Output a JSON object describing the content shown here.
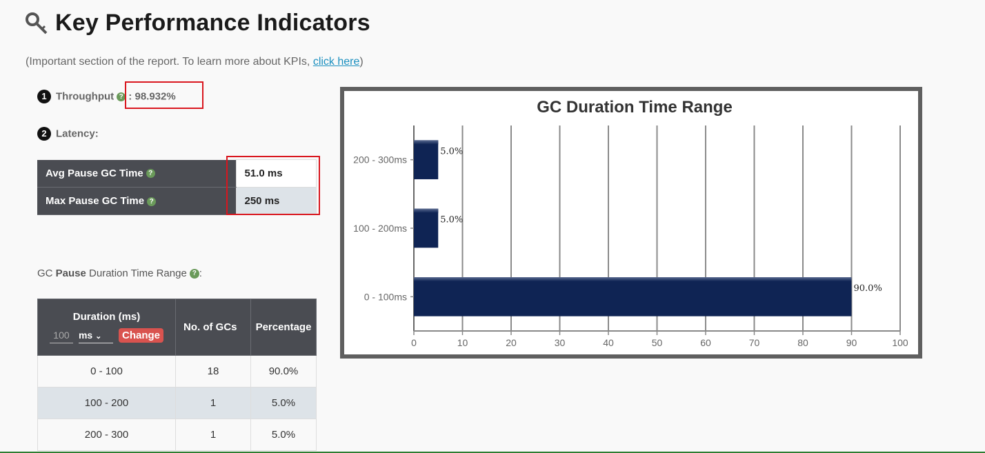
{
  "page": {
    "title": "Key Performance Indicators",
    "intro_prefix": "(Important section of the report. To learn more about KPIs, ",
    "intro_link": "click here",
    "intro_suffix": ")"
  },
  "kpis": {
    "throughput": {
      "badge": "1",
      "label": "Throughput",
      "separator": " : ",
      "value": "98.932%"
    },
    "latency": {
      "badge": "2",
      "label": "Latency:",
      "rows": [
        {
          "label": "Avg Pause GC Time",
          "value": "51.0 ms"
        },
        {
          "label": "Max Pause GC Time",
          "value": "250 ms"
        }
      ]
    }
  },
  "pause_range": {
    "title_prefix": "GC ",
    "title_bold": "Pause",
    "title_suffix": " Duration Time Range",
    "title_colon": ":",
    "headers": {
      "duration": "Duration (ms)",
      "count": "No. of GCs",
      "percentage": "Percentage"
    },
    "controls": {
      "input_placeholder": "100",
      "unit": "ms",
      "change": "Change"
    },
    "rows": [
      {
        "duration": "0 - 100",
        "count": "18",
        "percentage": "90.0%"
      },
      {
        "duration": "100 - 200",
        "count": "1",
        "percentage": "5.0%"
      },
      {
        "duration": "200 - 300",
        "count": "1",
        "percentage": "5.0%"
      }
    ]
  },
  "icons": {
    "title": "key-icon",
    "help": "question-circle-icon",
    "select": "chevron-down-icon"
  },
  "colors": {
    "bar": "#0f2454",
    "header": "#4a4c52",
    "highlight": "#d9161e",
    "change": "#d9534f",
    "link": "#1a8fbf"
  },
  "chart_data": {
    "type": "bar",
    "orientation": "horizontal",
    "title": "GC Duration Time Range",
    "categories": [
      "0 - 100ms",
      "100 - 200ms",
      "200 - 300ms"
    ],
    "values": [
      90.0,
      5.0,
      5.0
    ],
    "data_labels": [
      "90.0%",
      "5.0%",
      "5.0%"
    ],
    "xlim": [
      0,
      100
    ],
    "xticks": [
      0,
      10,
      20,
      30,
      40,
      50,
      60,
      70,
      80,
      90,
      100
    ],
    "grid": true,
    "xlabel": "",
    "ylabel": ""
  }
}
